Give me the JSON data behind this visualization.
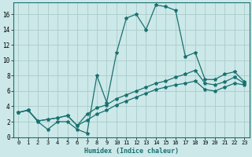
{
  "xlabel": "Humidex (Indice chaleur)",
  "bg_color": "#cce8e8",
  "grid_color": "#aacccc",
  "line_color": "#1a7070",
  "xlim": [
    -0.5,
    23.5
  ],
  "ylim": [
    0,
    17.5
  ],
  "xticks": [
    0,
    1,
    2,
    3,
    4,
    5,
    6,
    7,
    8,
    9,
    10,
    11,
    12,
    13,
    14,
    15,
    16,
    17,
    18,
    19,
    20,
    21,
    22,
    23
  ],
  "yticks": [
    0,
    2,
    4,
    6,
    8,
    10,
    12,
    14,
    16
  ],
  "line1_x": [
    0,
    1,
    2,
    3,
    4,
    5,
    6,
    7,
    8,
    9,
    10,
    11,
    12,
    13,
    14,
    15,
    16,
    17,
    18,
    19,
    20,
    21,
    22,
    23
  ],
  "line1_y": [
    3.2,
    3.5,
    2.0,
    1.0,
    2.0,
    2.0,
    1.0,
    0.5,
    8.0,
    4.5,
    11.0,
    15.5,
    16.0,
    14.0,
    17.2,
    17.0,
    16.5,
    10.5,
    11.0,
    7.5,
    7.5,
    8.2,
    8.5,
    7.2
  ],
  "line2_x": [
    0,
    1,
    2,
    3,
    4,
    5,
    6,
    7,
    8,
    9,
    10,
    11,
    12,
    13,
    14,
    15,
    16,
    17,
    18,
    19,
    20,
    21,
    22,
    23
  ],
  "line2_y": [
    3.2,
    3.5,
    2.1,
    2.3,
    2.5,
    2.8,
    1.5,
    3.0,
    3.8,
    4.2,
    5.0,
    5.5,
    6.0,
    6.5,
    7.0,
    7.3,
    7.8,
    8.2,
    8.7,
    7.0,
    6.8,
    7.2,
    7.8,
    7.0
  ],
  "line3_x": [
    0,
    1,
    2,
    3,
    4,
    5,
    6,
    7,
    8,
    9,
    10,
    11,
    12,
    13,
    14,
    15,
    16,
    17,
    18,
    19,
    20,
    21,
    22,
    23
  ],
  "line3_y": [
    3.2,
    3.5,
    2.1,
    2.3,
    2.5,
    2.8,
    1.5,
    2.2,
    3.0,
    3.5,
    4.2,
    4.7,
    5.2,
    5.7,
    6.2,
    6.5,
    6.8,
    7.0,
    7.3,
    6.2,
    6.0,
    6.5,
    7.0,
    6.8
  ]
}
